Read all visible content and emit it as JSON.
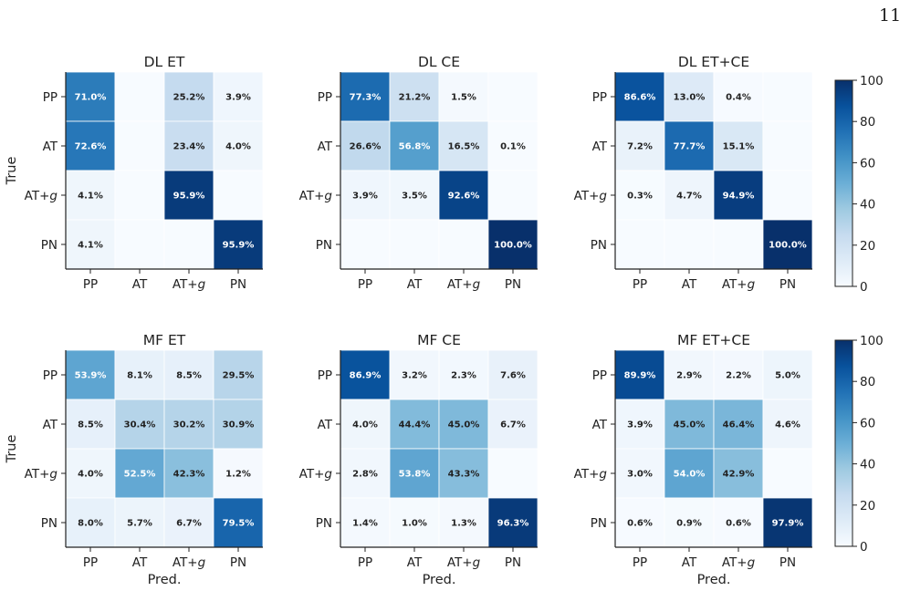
{
  "page_number": "11",
  "chart_data": [
    {
      "type": "heatmap",
      "title": "DL ET",
      "xlabel": "",
      "ylabel": "True",
      "x_categories": [
        "PP",
        "AT",
        "AT+g",
        "PN"
      ],
      "y_categories": [
        "PP",
        "AT",
        "AT+g",
        "PN"
      ],
      "values": [
        [
          71.0,
          null,
          25.2,
          3.9
        ],
        [
          72.6,
          null,
          23.4,
          4.0
        ],
        [
          4.1,
          null,
          95.9,
          null
        ],
        [
          4.1,
          null,
          null,
          95.9
        ]
      ],
      "value_range": [
        0,
        100
      ],
      "colormap": "Blues"
    },
    {
      "type": "heatmap",
      "title": "DL CE",
      "xlabel": "",
      "ylabel": "",
      "x_categories": [
        "PP",
        "AT",
        "AT+g",
        "PN"
      ],
      "y_categories": [
        "PP",
        "AT",
        "AT+g",
        "PN"
      ],
      "values": [
        [
          77.3,
          21.2,
          1.5,
          null
        ],
        [
          26.6,
          56.8,
          16.5,
          0.1
        ],
        [
          3.9,
          3.5,
          92.6,
          null
        ],
        [
          null,
          null,
          null,
          100.0
        ]
      ],
      "value_range": [
        0,
        100
      ],
      "colormap": "Blues"
    },
    {
      "type": "heatmap",
      "title": "DL ET+CE",
      "xlabel": "",
      "ylabel": "",
      "x_categories": [
        "PP",
        "AT",
        "AT+g",
        "PN"
      ],
      "y_categories": [
        "PP",
        "AT",
        "AT+g",
        "PN"
      ],
      "values": [
        [
          86.6,
          13.0,
          0.4,
          null
        ],
        [
          7.2,
          77.7,
          15.1,
          null
        ],
        [
          0.3,
          4.7,
          94.9,
          null
        ],
        [
          null,
          null,
          null,
          100.0
        ]
      ],
      "value_range": [
        0,
        100
      ],
      "colormap": "Blues"
    },
    {
      "type": "heatmap",
      "title": "MF ET",
      "xlabel": "Pred.",
      "ylabel": "True",
      "x_categories": [
        "PP",
        "AT",
        "AT+g",
        "PN"
      ],
      "y_categories": [
        "PP",
        "AT",
        "AT+g",
        "PN"
      ],
      "values": [
        [
          53.9,
          8.1,
          8.5,
          29.5
        ],
        [
          8.5,
          30.4,
          30.2,
          30.9
        ],
        [
          4.0,
          52.5,
          42.3,
          1.2
        ],
        [
          8.0,
          5.7,
          6.7,
          79.5
        ]
      ],
      "value_range": [
        0,
        100
      ],
      "colormap": "Blues"
    },
    {
      "type": "heatmap",
      "title": "MF CE",
      "xlabel": "Pred.",
      "ylabel": "",
      "x_categories": [
        "PP",
        "AT",
        "AT+g",
        "PN"
      ],
      "y_categories": [
        "PP",
        "AT",
        "AT+g",
        "PN"
      ],
      "values": [
        [
          86.9,
          3.2,
          2.3,
          7.6
        ],
        [
          4.0,
          44.4,
          45.0,
          6.7
        ],
        [
          2.8,
          53.8,
          43.3,
          null
        ],
        [
          1.4,
          1.0,
          1.3,
          96.3
        ]
      ],
      "value_range": [
        0,
        100
      ],
      "colormap": "Blues"
    },
    {
      "type": "heatmap",
      "title": "MF ET+CE",
      "xlabel": "Pred.",
      "ylabel": "",
      "x_categories": [
        "PP",
        "AT",
        "AT+g",
        "PN"
      ],
      "y_categories": [
        "PP",
        "AT",
        "AT+g",
        "PN"
      ],
      "values": [
        [
          89.9,
          2.9,
          2.2,
          5.0
        ],
        [
          3.9,
          45.0,
          46.4,
          4.6
        ],
        [
          3.0,
          54.0,
          42.9,
          null
        ],
        [
          0.6,
          0.9,
          0.6,
          97.9
        ]
      ],
      "value_range": [
        0,
        100
      ],
      "colormap": "Blues"
    }
  ],
  "colorbar": {
    "ticks": [
      0,
      20,
      40,
      60,
      80,
      100
    ]
  }
}
